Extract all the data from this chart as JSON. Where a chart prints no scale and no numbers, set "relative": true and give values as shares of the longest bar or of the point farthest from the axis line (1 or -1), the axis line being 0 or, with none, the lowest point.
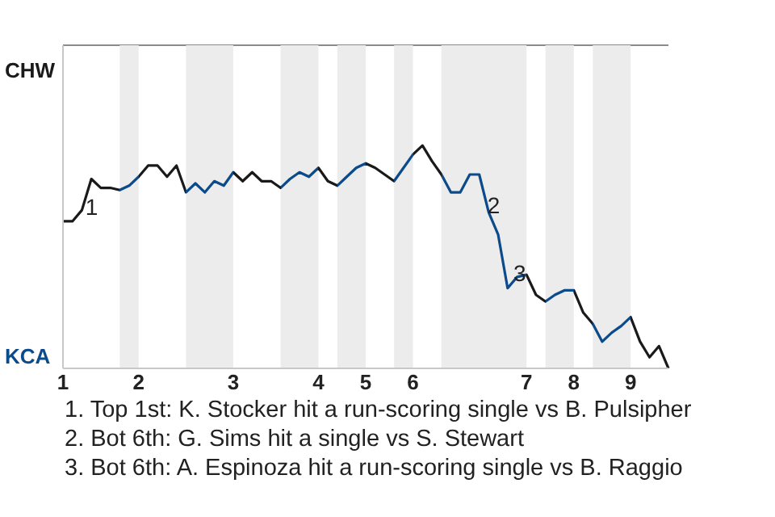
{
  "chart_data": {
    "type": "line",
    "relative": true,
    "categories": [
      "1",
      null,
      null,
      null,
      null,
      null,
      null,
      null,
      "2",
      null,
      null,
      null,
      null,
      null,
      null,
      null,
      null,
      null,
      "3",
      null,
      null,
      null,
      null,
      null,
      null,
      null,
      null,
      "4",
      null,
      null,
      null,
      null,
      "5",
      null,
      null,
      null,
      null,
      "6",
      null,
      null,
      null,
      null,
      null,
      null,
      null,
      null,
      null,
      null,
      null,
      "7",
      null,
      null,
      null,
      null,
      "8",
      null,
      null,
      null,
      null,
      null,
      "9",
      null,
      null,
      null,
      null
    ],
    "values": [
      0.66,
      0.66,
      0.71,
      0.85,
      0.81,
      0.81,
      0.8,
      0.82,
      0.86,
      0.91,
      0.91,
      0.86,
      0.91,
      0.79,
      0.83,
      0.79,
      0.84,
      0.82,
      0.88,
      0.84,
      0.88,
      0.84,
      0.84,
      0.81,
      0.85,
      0.88,
      0.86,
      0.9,
      0.84,
      0.82,
      0.86,
      0.9,
      0.92,
      0.9,
      0.87,
      0.84,
      0.9,
      0.96,
      1,
      0.93,
      0.87,
      0.79,
      0.79,
      0.87,
      0.87,
      0.7,
      0.6,
      0.36,
      0.41,
      0.42,
      0.33,
      0.3,
      0.33,
      0.35,
      0.35,
      0.25,
      0.2,
      0.12,
      0.16,
      0.19,
      0.23,
      0.12,
      0.05,
      0.1,
      0
    ],
    "colors": [
      "#1a1a1a",
      "#1a1a1a",
      "#1a1a1a",
      "#1a1a1a",
      "#1a1a1a",
      "#1a1a1a",
      "#0b4a8b",
      "#0b4a8b",
      "#1a1a1a",
      "#1a1a1a",
      "#1a1a1a",
      "#1a1a1a",
      "#1a1a1a",
      "#0b4a8b",
      "#0b4a8b",
      "#0b4a8b",
      "#0b4a8b",
      "#0b4a8b",
      "#1a1a1a",
      "#1a1a1a",
      "#1a1a1a",
      "#1a1a1a",
      "#1a1a1a",
      "#0b4a8b",
      "#0b4a8b",
      "#0b4a8b",
      "#0b4a8b",
      "#1a1a1a",
      "#1a1a1a",
      "#0b4a8b",
      "#0b4a8b",
      "#0b4a8b",
      "#1a1a1a",
      "#1a1a1a",
      "#1a1a1a",
      "#0b4a8b",
      "#0b4a8b",
      "#1a1a1a",
      "#1a1a1a",
      "#1a1a1a",
      "#0b4a8b",
      "#0b4a8b",
      "#0b4a8b",
      "#0b4a8b",
      "#0b4a8b",
      "#0b4a8b",
      "#0b4a8b",
      "#0b4a8b",
      "#0b4a8b",
      "#1a1a1a",
      "#1a1a1a",
      "#0b4a8b",
      "#0b4a8b",
      "#0b4a8b",
      "#1a1a1a",
      "#1a1a1a",
      "#0b4a8b",
      "#0b4a8b",
      "#0b4a8b",
      "#0b4a8b",
      "#1a1a1a",
      "#1a1a1a",
      "#1a1a1a",
      "#1a1a1a",
      "#1a1a1a"
    ],
    "annotations": [
      {
        "text": "CHW"
      },
      {
        "text": "KCA"
      },
      "1",
      "2",
      "3",
      "1. Top 1st: K. Stocker hit a run-scoring single vs B. Pulsipher",
      "2. Bot 6th: G. Sims hit a single vs S. Stewart",
      "3. Bot 6th: A. Espinoza hit a run-scoring single vs B. Raggio"
    ]
  }
}
